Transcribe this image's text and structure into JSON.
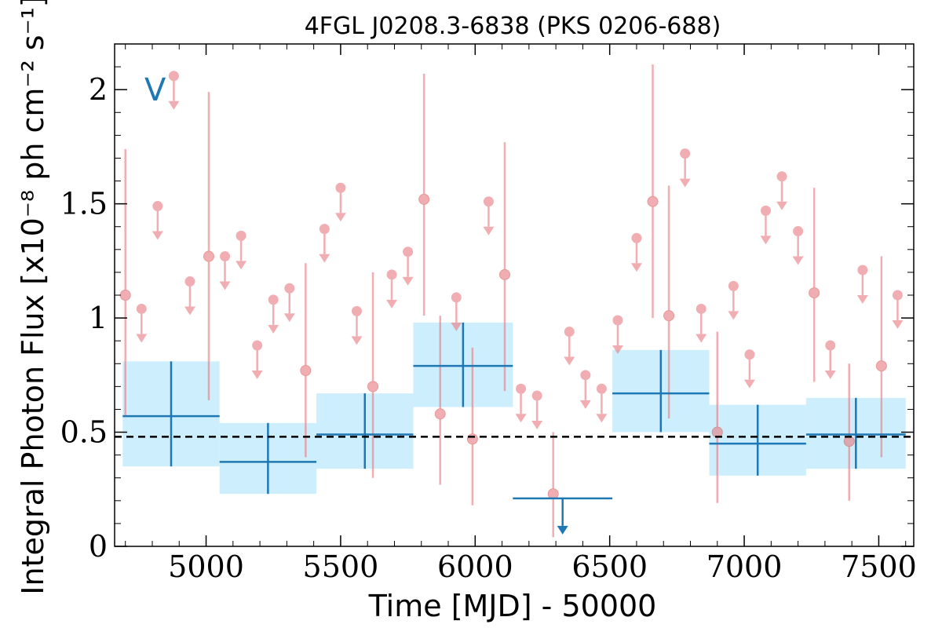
{
  "chart_data": {
    "type": "scatter",
    "title": "4FGL J0208.3-6838 (PKS 0206-688)",
    "xlabel": "Time [MJD] - 50000",
    "ylabel": "Integral Photon Flux [x10⁻⁸ ph cm⁻² s⁻¹]",
    "band_label": "V",
    "xlim": [
      4660,
      7630
    ],
    "ylim": [
      0,
      2.2
    ],
    "xticks": [
      5000,
      5500,
      6000,
      6500,
      7000,
      7500
    ],
    "xtick_labels": [
      "5000",
      "5500",
      "6000",
      "6500",
      "7000",
      "7500"
    ],
    "yticks": [
      0,
      0.5,
      1,
      1.5,
      2
    ],
    "ytick_labels": [
      "0",
      "0.5",
      "1",
      "1.5",
      "2"
    ],
    "mean_flux": 0.48,
    "colors": {
      "short_bins": "#e8797f",
      "long_bins": "#1f77b4",
      "long_band": "#cdeefc",
      "mean_line": "#000000"
    },
    "series": [
      {
        "points": [
          {
            "x": 4700,
            "y": 1.1,
            "lo": 0.57,
            "hi": 1.74,
            "ul": false
          },
          {
            "x": 4760,
            "y": 1.04,
            "ul": true
          },
          {
            "x": 4820,
            "y": 1.49,
            "ul": true
          },
          {
            "x": 4880,
            "y": 2.06,
            "ul": true
          },
          {
            "x": 4940,
            "y": 1.16,
            "ul": true
          },
          {
            "x": 5010,
            "y": 1.27,
            "lo": 0.64,
            "hi": 1.99,
            "ul": false
          },
          {
            "x": 5070,
            "y": 1.27,
            "ul": true
          },
          {
            "x": 5130,
            "y": 1.36,
            "ul": true
          },
          {
            "x": 5190,
            "y": 0.88,
            "ul": true
          },
          {
            "x": 5250,
            "y": 1.08,
            "ul": true
          },
          {
            "x": 5310,
            "y": 1.13,
            "ul": true
          },
          {
            "x": 5370,
            "y": 0.77,
            "lo": 0.39,
            "hi": 1.24,
            "ul": false
          },
          {
            "x": 5440,
            "y": 1.39,
            "ul": true
          },
          {
            "x": 5500,
            "y": 1.57,
            "ul": true
          },
          {
            "x": 5560,
            "y": 1.03,
            "ul": true
          },
          {
            "x": 5620,
            "y": 0.7,
            "lo": 0.3,
            "hi": 1.2,
            "ul": false
          },
          {
            "x": 5690,
            "y": 1.19,
            "ul": true
          },
          {
            "x": 5750,
            "y": 1.29,
            "ul": true
          },
          {
            "x": 5810,
            "y": 1.52,
            "lo": 1.01,
            "hi": 2.07,
            "ul": false
          },
          {
            "x": 5870,
            "y": 0.58,
            "lo": 0.27,
            "hi": 1.01,
            "ul": false
          },
          {
            "x": 5930,
            "y": 1.09,
            "ul": true
          },
          {
            "x": 5990,
            "y": 0.47,
            "lo": 0.18,
            "hi": 0.87,
            "ul": false
          },
          {
            "x": 6050,
            "y": 1.51,
            "ul": true
          },
          {
            "x": 6110,
            "y": 1.19,
            "lo": 0.68,
            "hi": 1.77,
            "ul": false
          },
          {
            "x": 6170,
            "y": 0.69,
            "ul": true
          },
          {
            "x": 6230,
            "y": 0.66,
            "ul": true
          },
          {
            "x": 6290,
            "y": 0.23,
            "lo": 0.04,
            "hi": 0.5,
            "ul": false
          },
          {
            "x": 6350,
            "y": 0.94,
            "ul": true
          },
          {
            "x": 6410,
            "y": 0.75,
            "ul": true
          },
          {
            "x": 6470,
            "y": 0.69,
            "ul": true
          },
          {
            "x": 6530,
            "y": 0.99,
            "ul": true
          },
          {
            "x": 6600,
            "y": 1.35,
            "ul": true
          },
          {
            "x": 6660,
            "y": 1.51,
            "lo": 1.0,
            "hi": 2.11,
            "ul": false
          },
          {
            "x": 6720,
            "y": 1.01,
            "lo": 0.56,
            "hi": 1.58,
            "ul": false
          },
          {
            "x": 6780,
            "y": 1.72,
            "ul": true
          },
          {
            "x": 6840,
            "y": 1.04,
            "ul": true
          },
          {
            "x": 6900,
            "y": 0.5,
            "lo": 0.19,
            "hi": 0.94,
            "ul": false
          },
          {
            "x": 6960,
            "y": 1.14,
            "ul": true
          },
          {
            "x": 7020,
            "y": 0.84,
            "ul": true
          },
          {
            "x": 7080,
            "y": 1.47,
            "ul": true
          },
          {
            "x": 7140,
            "y": 1.62,
            "ul": true
          },
          {
            "x": 7200,
            "y": 1.38,
            "ul": true
          },
          {
            "x": 7260,
            "y": 1.11,
            "lo": 0.72,
            "hi": 1.57,
            "ul": false
          },
          {
            "x": 7320,
            "y": 0.88,
            "ul": true
          },
          {
            "x": 7390,
            "y": 0.46,
            "lo": 0.2,
            "hi": 0.8,
            "ul": false
          },
          {
            "x": 7440,
            "y": 1.21,
            "ul": true
          },
          {
            "x": 7510,
            "y": 0.79,
            "lo": 0.39,
            "hi": 1.27,
            "ul": false
          },
          {
            "x": 7570,
            "y": 1.1,
            "ul": true
          }
        ]
      },
      {
        "bins": [
          {
            "x0": 4690,
            "x1": 5050,
            "y": 0.57,
            "lo": 0.35,
            "hi": 0.81,
            "ul": false
          },
          {
            "x0": 5050,
            "x1": 5410,
            "y": 0.37,
            "lo": 0.23,
            "hi": 0.54,
            "ul": false
          },
          {
            "x0": 5410,
            "x1": 5770,
            "y": 0.49,
            "lo": 0.34,
            "hi": 0.67,
            "ul": false
          },
          {
            "x0": 5770,
            "x1": 6140,
            "y": 0.79,
            "lo": 0.61,
            "hi": 0.98,
            "ul": false
          },
          {
            "x0": 6140,
            "x1": 6510,
            "y": 0.21,
            "ul": true
          },
          {
            "x0": 6510,
            "x1": 6870,
            "y": 0.67,
            "lo": 0.5,
            "hi": 0.86,
            "ul": false
          },
          {
            "x0": 6870,
            "x1": 7230,
            "y": 0.45,
            "lo": 0.31,
            "hi": 0.62,
            "ul": false
          },
          {
            "x0": 7230,
            "x1": 7600,
            "y": 0.49,
            "lo": 0.34,
            "hi": 0.65,
            "ul": false
          }
        ]
      }
    ]
  }
}
